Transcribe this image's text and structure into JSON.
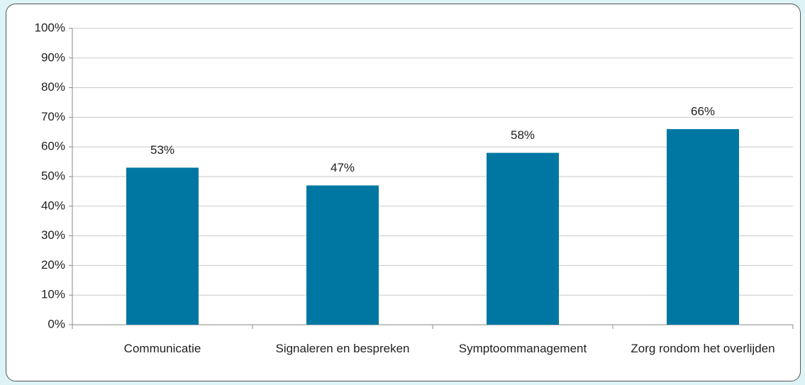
{
  "chart_data": {
    "type": "bar",
    "categories": [
      "Communicatie",
      "Signaleren en bespreken",
      "Symptoommanagement",
      "Zorg rondom het overlijden"
    ],
    "values": [
      53,
      47,
      58,
      66
    ],
    "value_labels": [
      "53%",
      "47%",
      "58%",
      "66%"
    ],
    "color": "#0077a2",
    "ylim": [
      0,
      100
    ],
    "yticks": [
      {
        "value": 0,
        "label": "0%"
      },
      {
        "value": 10,
        "label": "10%"
      },
      {
        "value": 20,
        "label": "20%"
      },
      {
        "value": 30,
        "label": "30%"
      },
      {
        "value": 40,
        "label": "40%"
      },
      {
        "value": 50,
        "label": "50%"
      },
      {
        "value": 60,
        "label": "60%"
      },
      {
        "value": 70,
        "label": "70%"
      },
      {
        "value": 80,
        "label": "80%"
      },
      {
        "value": 90,
        "label": "90%"
      },
      {
        "value": 100,
        "label": "100%"
      }
    ],
    "grid": true
  }
}
